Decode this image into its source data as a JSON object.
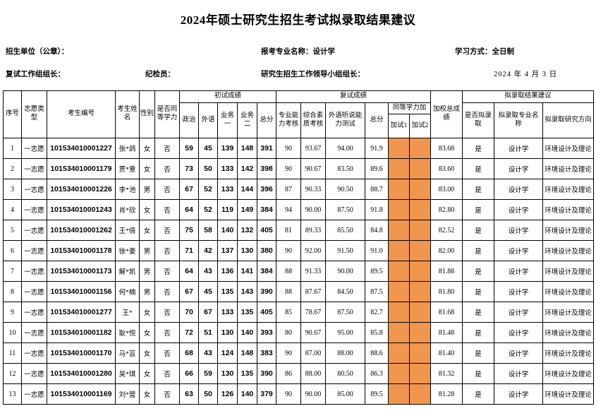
{
  "page": {
    "title": "2024年硕士研究生招生考试拟录取结果建议"
  },
  "info": {
    "unit_label": "招生单位（公章）：",
    "major_label": "报考专业名称：设计学",
    "study_mode_label": "学习方式：全日制",
    "review_leader_label": "复试工作组组长：",
    "discipline_inspector_label": "纪检员：",
    "leading_group_label": "研究生招生工作领导小组组长：",
    "date": "2024 年 4 月 3 日"
  },
  "colors": {
    "highlight_orange": "#F0964E",
    "border": "#000000"
  },
  "table": {
    "headers": {
      "seq": "序号",
      "volunteer_type": "志愿类型",
      "candidate_no": "考生编号",
      "candidate_name": "考生姓名",
      "gender": "性别",
      "equivalent": "是否同等学力",
      "initial_group": "初试成绩",
      "politics": "政治",
      "foreign_lang": "外语",
      "business1": "业务一",
      "business2": "业务二",
      "initial_total": "总分",
      "retest_group": "复试成绩",
      "professional_exam": "专业能力考核",
      "comprehensive_exam": "综合素质考核",
      "oral_test": "外语听说能力测试",
      "retest_total": "总分",
      "equiv_extra_group": "同等学力加",
      "extra_test1": "加试1",
      "extra_test2": "加试2",
      "weighted_total": "加权总成绩",
      "result_group": "拟录取结果建议",
      "admit": "是否拟录取",
      "admit_major": "拟录取专业名称",
      "admit_direction": "拟录取研究方向"
    },
    "rows": [
      [
        "1",
        "一志愿",
        "101534010001227",
        "张*鸽",
        "女",
        "否",
        "59",
        "45",
        "139",
        "148",
        "391",
        "90",
        "93.67",
        "94.00",
        "91.9",
        "",
        "",
        "83.68",
        "是",
        "设计学",
        "环境设计及理论"
      ],
      [
        "2",
        "一志愿",
        "101534010001179",
        "贾*意",
        "女",
        "否",
        "73",
        "50",
        "133",
        "142",
        "398",
        "90",
        "90.67",
        "83.50",
        "89.6",
        "",
        "",
        "83.60",
        "是",
        "设计学",
        "环境设计及理论"
      ],
      [
        "3",
        "一志愿",
        "101534010001226",
        "李*池",
        "男",
        "否",
        "67",
        "52",
        "133",
        "144",
        "396",
        "87",
        "90.33",
        "90.50",
        "88.7",
        "",
        "",
        "83.00",
        "是",
        "设计学",
        "环境设计及理论"
      ],
      [
        "4",
        "一志愿",
        "101534010001243",
        "肖*欣",
        "女",
        "否",
        "64",
        "52",
        "119",
        "149",
        "384",
        "94",
        "90.00",
        "87.50",
        "91.8",
        "",
        "",
        "82.80",
        "是",
        "设计学",
        "环境设计及理论"
      ],
      [
        "5",
        "一志愿",
        "101534010001262",
        "王*倩",
        "女",
        "否",
        "75",
        "58",
        "140",
        "132",
        "405",
        "81",
        "89.33",
        "85.50",
        "84.8",
        "",
        "",
        "82.52",
        "是",
        "设计学",
        "环境设计及理论"
      ],
      [
        "6",
        "一志愿",
        "101534010001178",
        "徐*豪",
        "男",
        "否",
        "71",
        "42",
        "137",
        "130",
        "380",
        "90",
        "92.00",
        "91.50",
        "91.0",
        "",
        "",
        "82.00",
        "是",
        "设计学",
        "环境设计及理论"
      ],
      [
        "7",
        "一志愿",
        "101534010001173",
        "解*凯",
        "男",
        "否",
        "64",
        "43",
        "136",
        "141",
        "384",
        "88",
        "91.33",
        "90.00",
        "89.5",
        "",
        "",
        "81.88",
        "是",
        "设计学",
        "环境设计及理论"
      ],
      [
        "8",
        "一志愿",
        "101534010001156",
        "何*楠",
        "男",
        "否",
        "67",
        "45",
        "135",
        "143",
        "390",
        "88",
        "87.67",
        "84.50",
        "87.5",
        "",
        "",
        "81.80",
        "是",
        "设计学",
        "环境设计及理论"
      ],
      [
        "9",
        "一志愿",
        "101534010001277",
        "王*",
        "女",
        "否",
        "70",
        "67",
        "133",
        "135",
        "405",
        "85",
        "78.67",
        "87.50",
        "82.7",
        "",
        "",
        "81.68",
        "是",
        "设计学",
        "环境设计及理论"
      ],
      [
        "10",
        "一志愿",
        "101534010001182",
        "耿*悦",
        "女",
        "否",
        "72",
        "51",
        "130",
        "140",
        "393",
        "80",
        "90.67",
        "95.00",
        "85.8",
        "",
        "",
        "81.48",
        "是",
        "设计学",
        "环境设计及理论"
      ],
      [
        "11",
        "一志愿",
        "101534010001170",
        "马*芸",
        "女",
        "否",
        "68",
        "43",
        "124",
        "148",
        "383",
        "90",
        "87.00",
        "88.00",
        "88.6",
        "",
        "",
        "81.40",
        "是",
        "设计学",
        "环境设计及理论"
      ],
      [
        "12",
        "一志愿",
        "101534010001280",
        "吴*琪",
        "女",
        "否",
        "66",
        "59",
        "130",
        "135",
        "390",
        "86",
        "88.00",
        "80.50",
        "86.3",
        "",
        "",
        "81.32",
        "是",
        "设计学",
        "环境设计及理论"
      ],
      [
        "13",
        "一志愿",
        "101534010001169",
        "刘*营",
        "女",
        "否",
        "63",
        "50",
        "126",
        "140",
        "379",
        "90",
        "90.00",
        "85.00",
        "89.5",
        "",
        "",
        "81.28",
        "是",
        "设计学",
        "环境设计及理论"
      ]
    ]
  }
}
